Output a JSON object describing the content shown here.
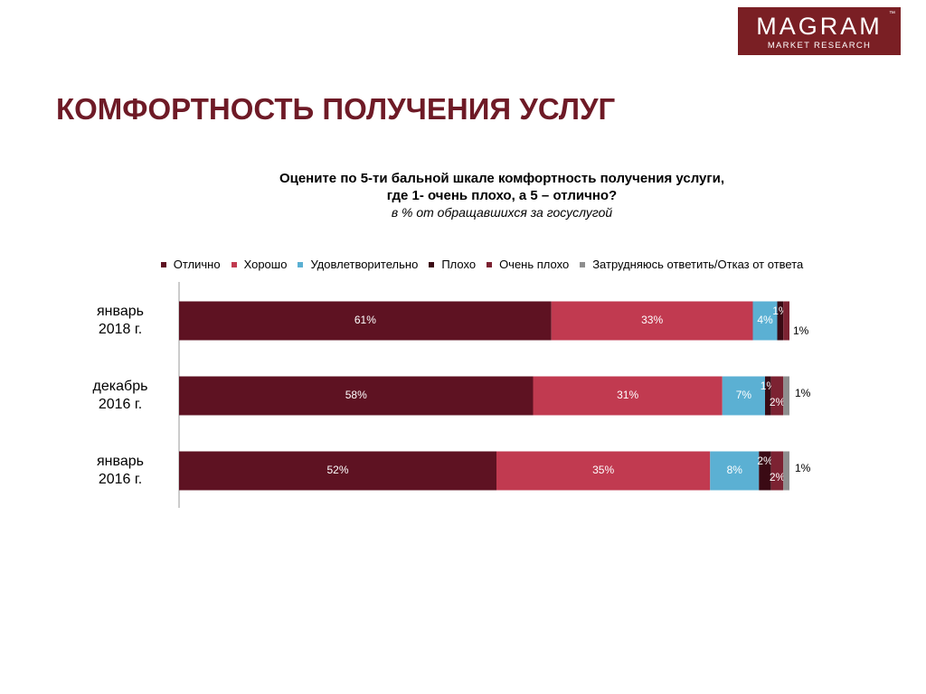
{
  "logo": {
    "name": "MAGRAM",
    "tm": "™",
    "tagline": "MARKET RESEARCH"
  },
  "heading": "КОМФОРТНОСТЬ ПОЛУЧЕНИЯ УСЛУГ",
  "chart_data": {
    "type": "stacked-bar-horizontal",
    "title": "Оцените по 5-ти бальной шкале комфортность получения услуги,\nгде 1- очень плохо, а 5 – отлично?",
    "subtitle": "в % от обращавшихся за госуслугой",
    "categories": [
      "январь\n2018 г.",
      "декабрь\n2016 г.",
      "январь\n2016 г."
    ],
    "xlim": [
      0,
      100
    ],
    "series": [
      {
        "name": "Отлично",
        "color": "#5e1222",
        "values": [
          61,
          58,
          52
        ],
        "value_labels": [
          "61%",
          "58%",
          "52%"
        ]
      },
      {
        "name": "Хорошо",
        "color": "#c13a50",
        "values": [
          33,
          31,
          35
        ],
        "value_labels": [
          "33%",
          "31%",
          "35%"
        ]
      },
      {
        "name": "Удовлетворительно",
        "color": "#5bb0d3",
        "values": [
          4,
          7,
          8
        ],
        "value_labels": [
          "4%",
          "7%",
          "8%"
        ]
      },
      {
        "name": "Плохо",
        "color": "#3a0a14",
        "values": [
          1,
          1,
          2
        ],
        "value_labels": [
          "1%",
          "1%",
          "2%"
        ]
      },
      {
        "name": "Очень плохо",
        "color": "#7c2232",
        "values": [
          1,
          2,
          2
        ],
        "value_labels": [
          "1%",
          "2%",
          "2%"
        ]
      },
      {
        "name": "Затрудняюсь ответить/Отказ от ответа",
        "color": "#8e8e8e",
        "values": [
          null,
          1,
          1
        ],
        "value_labels": [
          null,
          "1%",
          "1%"
        ]
      }
    ]
  }
}
